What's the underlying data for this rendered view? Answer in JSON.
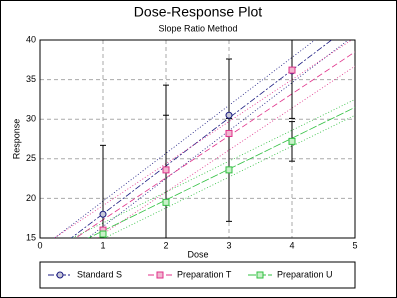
{
  "chart_data": {
    "type": "scatter",
    "title": "Dose-Response Plot",
    "subtitle": "Slope Ratio Method",
    "x_label": "Dose",
    "y_label": "Response",
    "xlim": [
      0,
      5
    ],
    "ylim": [
      15,
      40
    ],
    "xticks": [
      0,
      1,
      2,
      3,
      4,
      5
    ],
    "yticks": [
      15,
      20,
      25,
      30,
      35,
      40
    ],
    "grid": true,
    "legend": "bottom",
    "series": [
      {
        "name": "Standard S",
        "color": "#1a1a80",
        "marker": "circle",
        "x": [
          1,
          3,
          4
        ],
        "values": [
          18,
          30.5,
          36.1
        ],
        "errors": [
          8.7,
          7.1,
          6
        ],
        "fit": {
          "intercept": 12,
          "slope": 6.05,
          "band": 1.6
        }
      },
      {
        "name": "Preparation T",
        "color": "#e0308a",
        "marker": "square",
        "x": [
          1,
          2,
          3,
          4
        ],
        "values": [
          16,
          23.6,
          28.2,
          36.2
        ],
        "errors": [
          null,
          10.7,
          null,
          null
        ],
        "fit": {
          "intercept": 12,
          "slope": 5.3,
          "band": 1.8
        }
      },
      {
        "name": "Preparation U",
        "color": "#30c040",
        "marker": "square",
        "x": [
          1,
          2,
          3,
          4
        ],
        "values": [
          15.5,
          19.5,
          23.6,
          27.2
        ],
        "errors": [
          null,
          11,
          6.5,
          2.5
        ],
        "fit": {
          "intercept": 12,
          "slope": 3.9,
          "band": 1
        }
      }
    ]
  }
}
